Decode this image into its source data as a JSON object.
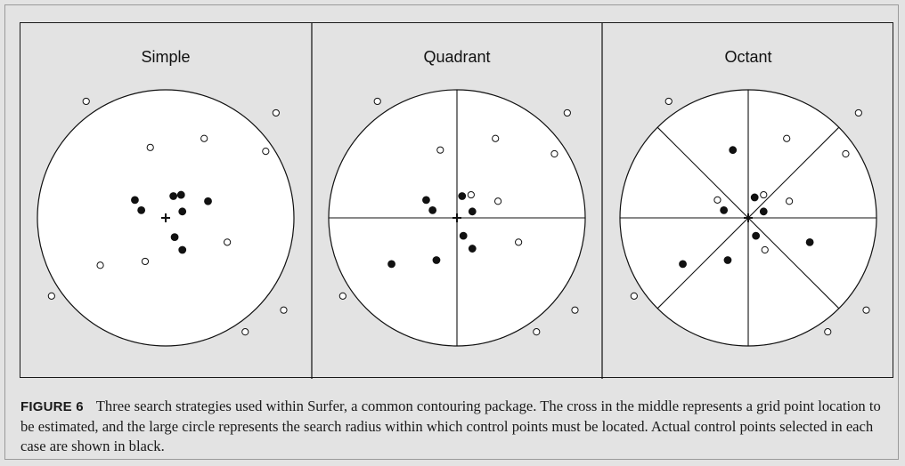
{
  "figure": {
    "label": "FIGURE 6",
    "caption": "Three search strategies used within Surfer, a common contouring package. The cross in the middle represents a grid point location to be estimated, and the large circle represents the search radius within which control points must be located. Actual control points selected in each case are shown in black."
  },
  "colors": {
    "panel_background": "#e3e3e3",
    "search_area": "#ffffff",
    "ink": "#111111"
  },
  "panels": [
    {
      "title": "Simple",
      "sectors": 0,
      "selected_points": [
        [
          -0.24,
          0.14
        ],
        [
          -0.19,
          0.06
        ],
        [
          0.06,
          0.17
        ],
        [
          0.12,
          0.18
        ],
        [
          0.13,
          0.05
        ],
        [
          0.33,
          0.13
        ],
        [
          0.07,
          -0.15
        ],
        [
          0.13,
          -0.25
        ]
      ],
      "unselected_points": [
        [
          -0.62,
          0.91
        ],
        [
          0.86,
          0.82
        ],
        [
          0.78,
          0.52
        ],
        [
          -0.12,
          0.55
        ],
        [
          0.3,
          0.62
        ],
        [
          0.48,
          -0.19
        ],
        [
          -0.51,
          -0.37
        ],
        [
          -0.16,
          -0.34
        ],
        [
          -0.89,
          -0.61
        ],
        [
          0.92,
          -0.72
        ],
        [
          0.62,
          -0.89
        ]
      ]
    },
    {
      "title": "Quadrant",
      "sectors": 4,
      "selected_points": [
        [
          -0.24,
          0.14
        ],
        [
          -0.19,
          0.06
        ],
        [
          0.04,
          0.17
        ],
        [
          0.12,
          0.05
        ],
        [
          0.05,
          -0.14
        ],
        [
          0.12,
          -0.24
        ],
        [
          -0.51,
          -0.36
        ],
        [
          -0.16,
          -0.33
        ]
      ],
      "unselected_points": [
        [
          -0.62,
          0.91
        ],
        [
          0.86,
          0.82
        ],
        [
          0.76,
          0.5
        ],
        [
          -0.13,
          0.53
        ],
        [
          0.3,
          0.62
        ],
        [
          0.11,
          0.18
        ],
        [
          0.32,
          0.13
        ],
        [
          0.48,
          -0.19
        ],
        [
          -0.89,
          -0.61
        ],
        [
          0.92,
          -0.72
        ],
        [
          0.62,
          -0.89
        ]
      ]
    },
    {
      "title": "Octant",
      "sectors": 8,
      "selected_points": [
        [
          -0.12,
          0.53
        ],
        [
          0.05,
          0.16
        ],
        [
          -0.19,
          0.06
        ],
        [
          0.12,
          0.05
        ],
        [
          0.06,
          -0.14
        ],
        [
          0.48,
          -0.19
        ],
        [
          -0.51,
          -0.36
        ],
        [
          -0.16,
          -0.33
        ]
      ],
      "unselected_points": [
        [
          -0.62,
          0.91
        ],
        [
          0.86,
          0.82
        ],
        [
          0.76,
          0.5
        ],
        [
          0.3,
          0.62
        ],
        [
          -0.24,
          0.14
        ],
        [
          0.12,
          0.18
        ],
        [
          0.32,
          0.13
        ],
        [
          0.13,
          -0.25
        ],
        [
          -0.89,
          -0.61
        ],
        [
          0.92,
          -0.72
        ],
        [
          0.62,
          -0.89
        ]
      ]
    }
  ]
}
